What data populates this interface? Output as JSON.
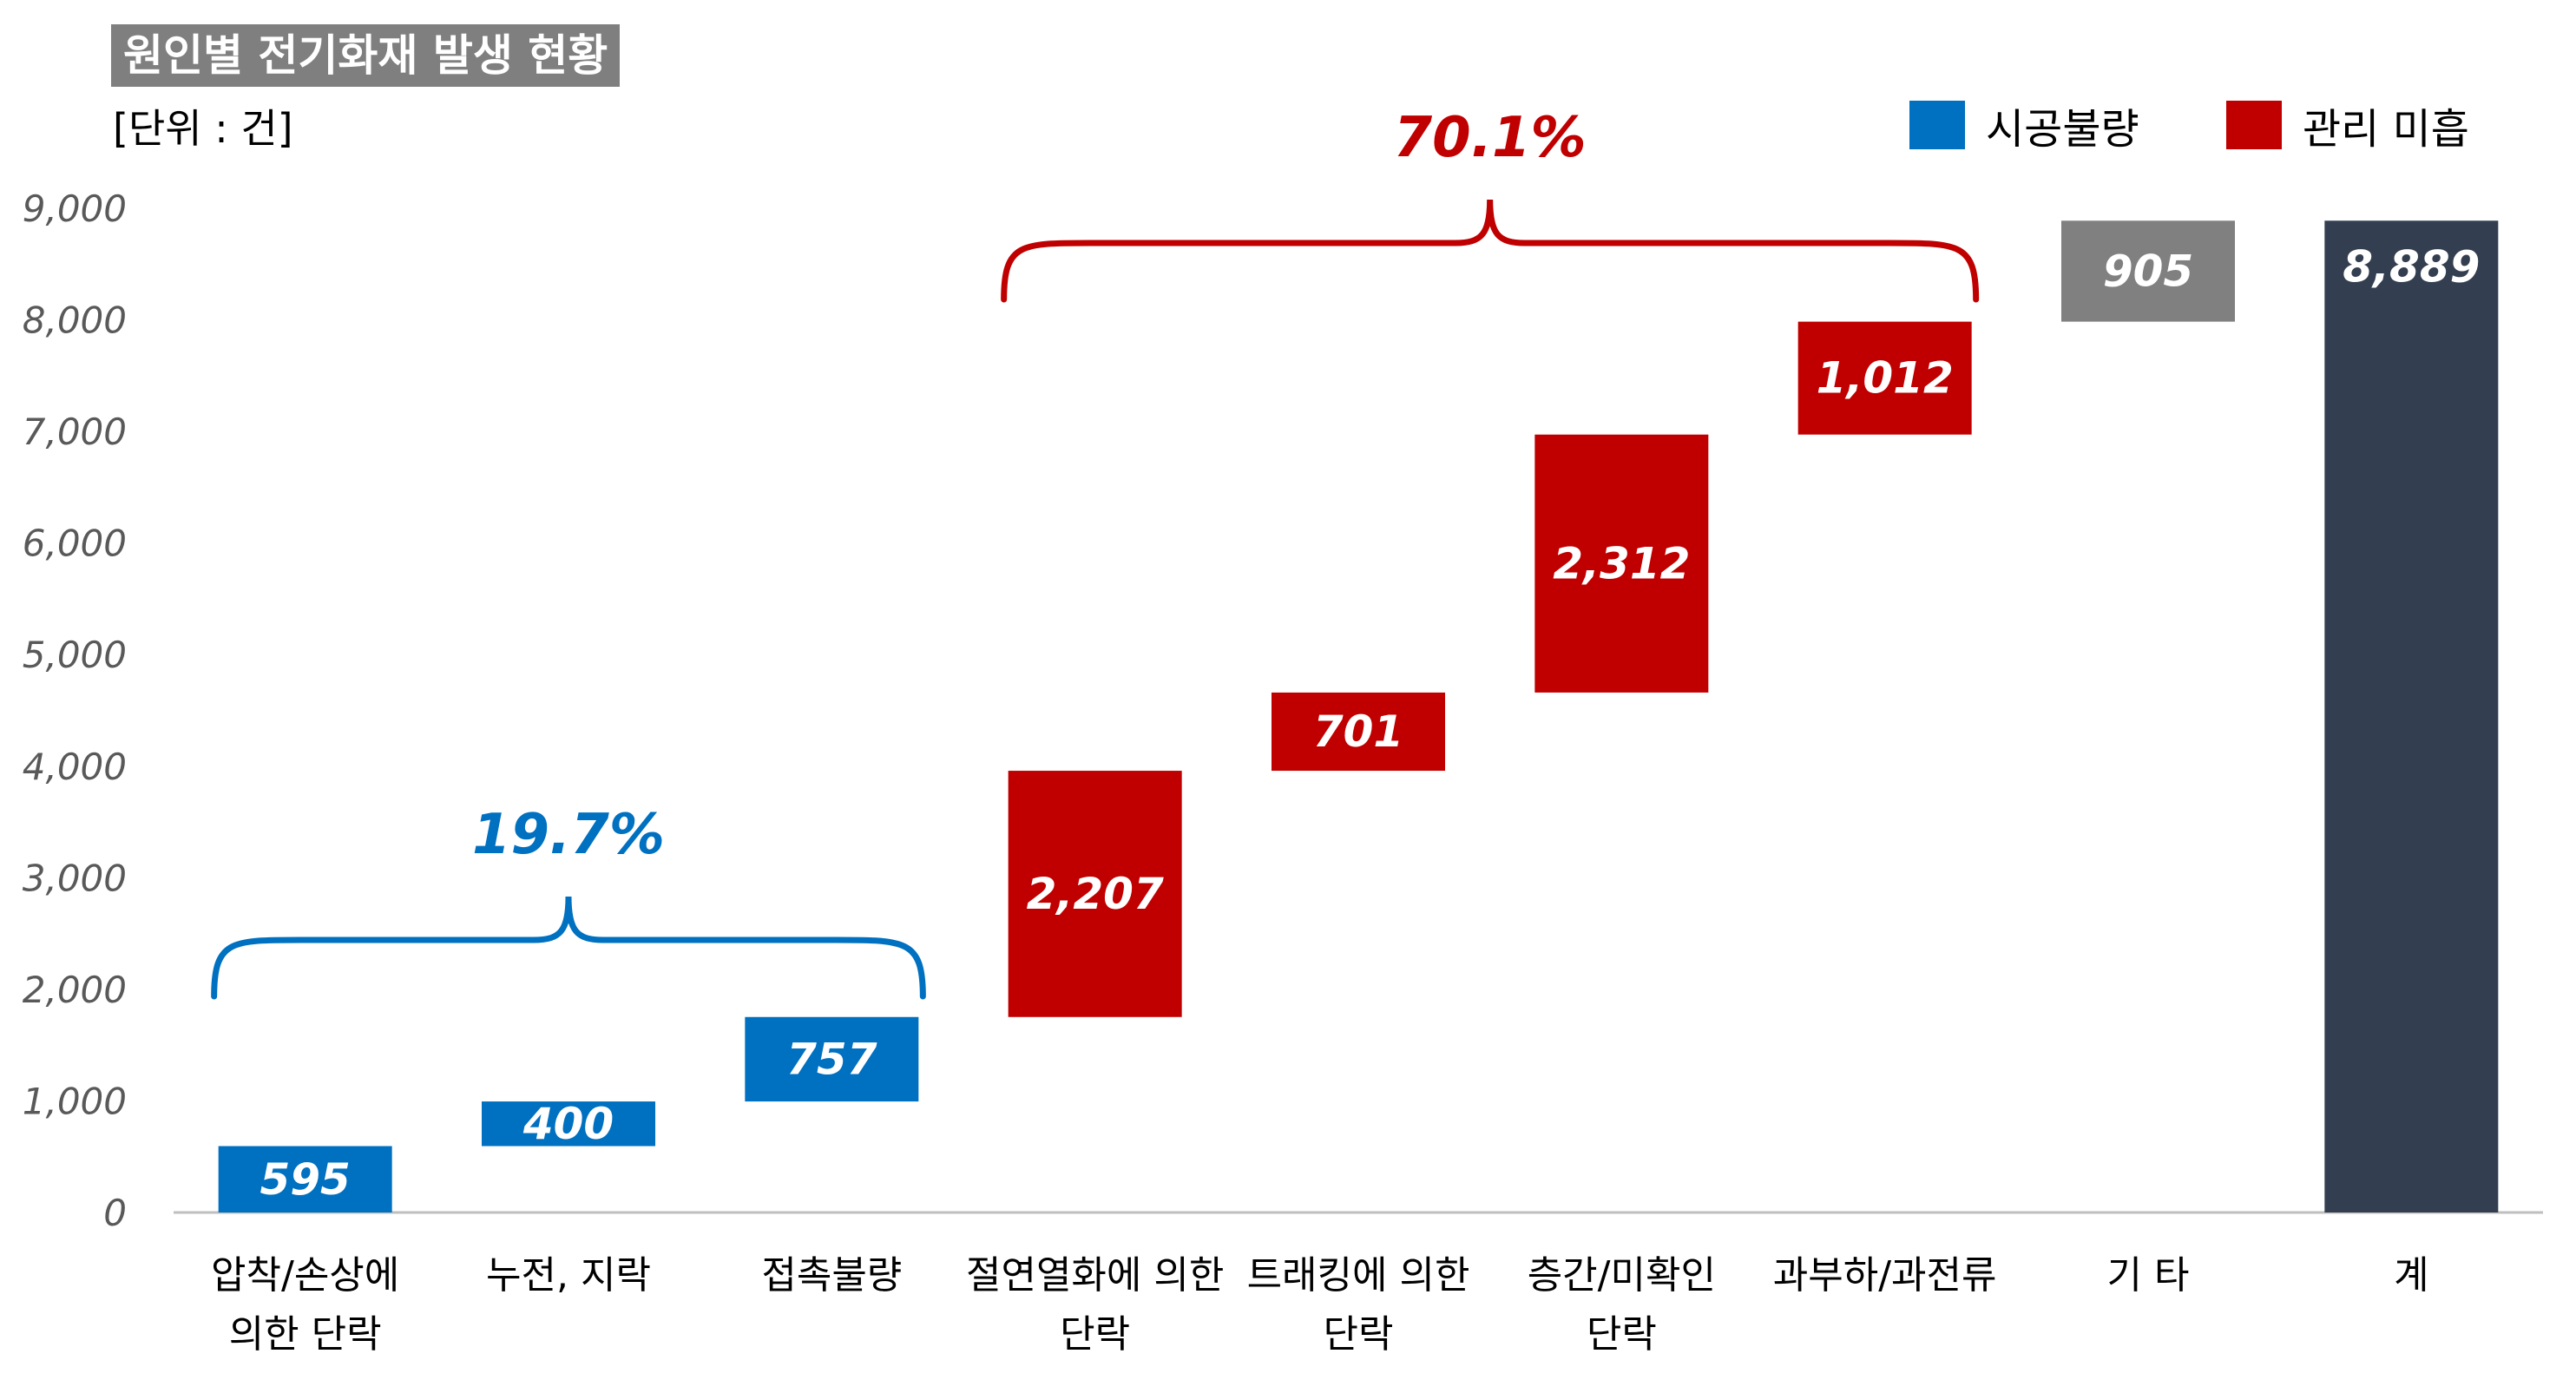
{
  "chart_data": {
    "type": "bar",
    "subtype": "waterfall",
    "title": "원인별 전기화재 발생 현황",
    "unit_label": "[단위 : 건]",
    "ylim": [
      0,
      9000
    ],
    "y_ticks": [
      "0",
      "1,000",
      "2,000",
      "3,000",
      "4,000",
      "5,000",
      "6,000",
      "7,000",
      "8,000",
      "9,000"
    ],
    "y_tick_values": [
      0,
      1000,
      2000,
      3000,
      4000,
      5000,
      6000,
      7000,
      8000,
      9000
    ],
    "grid": false,
    "legend_position": "top-right",
    "legend": [
      {
        "name": "시공불량",
        "color": "#0070c0"
      },
      {
        "name": "관리 미흡",
        "color": "#c00000"
      }
    ],
    "categories": [
      [
        "압착/손상에",
        "의한 단락"
      ],
      [
        "누전, 지락"
      ],
      [
        "접촉불량"
      ],
      [
        "절연열화에 의한",
        "단락"
      ],
      [
        "트래킹에 의한",
        "단락"
      ],
      [
        "층간/미확인",
        "단락"
      ],
      [
        "과부하/과전류"
      ],
      [
        "기 타"
      ],
      [
        "계"
      ]
    ],
    "values": [
      595,
      400,
      757,
      2207,
      701,
      2312,
      1012,
      905,
      8889
    ],
    "value_labels": [
      "595",
      "400",
      "757",
      "2,207",
      "701",
      "2,312",
      "1,012",
      "905",
      "8,889"
    ],
    "bar_start": [
      0,
      595,
      995,
      1752,
      3959,
      4660,
      6972,
      7984,
      0
    ],
    "bar_group": [
      "시공불량",
      "시공불량",
      "시공불량",
      "관리 미흡",
      "관리 미흡",
      "관리 미흡",
      "관리 미흡",
      "기타",
      "계"
    ],
    "colors": {
      "시공불량": "#0070c0",
      "관리 미흡": "#c00000",
      "기타": "#808080",
      "계": "#333f50",
      "title_bg": "#7f7f7f"
    },
    "annotations": [
      {
        "text": "19.7%",
        "group": "시공불량",
        "color": "#0070c0",
        "from_category": 0,
        "to_category": 2
      },
      {
        "text": "70.1%",
        "group": "관리 미흡",
        "color": "#c00000",
        "from_category": 3,
        "to_category": 6
      }
    ]
  }
}
